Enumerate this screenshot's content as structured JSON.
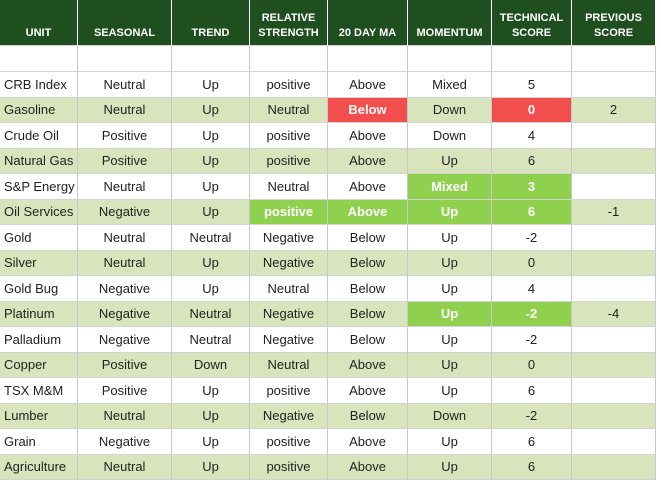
{
  "table": {
    "columns": [
      "UNIT",
      "SEASONAL",
      "TREND",
      "RELATIVE STRENGTH",
      "20 DAY MA",
      "MOMENTUM",
      "TECHNICAL SCORE",
      "PREVIOUS SCORE"
    ],
    "rows": [
      [
        "CRB Index",
        "Neutral",
        "Up",
        "positive",
        "Above",
        "Mixed",
        "5",
        null
      ],
      [
        "Gasoline",
        "Neutral",
        "Up",
        "Neutral",
        {
          "text": "Below",
          "fill": "#f24e4e"
        },
        "Down",
        {
          "text": "0",
          "fill": "#f24e4e"
        },
        "2"
      ],
      [
        "Crude Oil",
        "Positive",
        "Up",
        "positive",
        "Above",
        "Down",
        "4",
        null
      ],
      [
        "Natural Gas",
        "Positive",
        "Up",
        "positive",
        "Above",
        "Up",
        "6",
        null
      ],
      [
        "S&P Energy",
        "Neutral",
        "Up",
        "Neutral",
        "Above",
        {
          "text": "Mixed",
          "fill": "#8fd14f"
        },
        {
          "text": "3",
          "fill": "#8fd14f"
        },
        null
      ],
      [
        "Oil Services",
        "Negative",
        "Up",
        {
          "text": "positive",
          "fill": "#8fd14f"
        },
        {
          "text": "Above",
          "fill": "#8fd14f"
        },
        {
          "text": "Up",
          "fill": "#8fd14f"
        },
        {
          "text": "6",
          "fill": "#8fd14f"
        },
        "-1"
      ],
      [
        "Gold",
        "Neutral",
        "Neutral",
        "Negative",
        "Below",
        "Up",
        "-2",
        null
      ],
      [
        "Silver",
        "Neutral",
        "Up",
        "Negative",
        "Below",
        "Up",
        "0",
        null
      ],
      [
        "Gold Bug",
        "Negative",
        "Up",
        "Neutral",
        "Below",
        "Up",
        "4",
        null
      ],
      [
        "Platinum",
        "Negative",
        "Neutral",
        "Negative",
        "Below",
        {
          "text": "Up",
          "fill": "#8fd14f"
        },
        {
          "text": "-2",
          "fill": "#8fd14f"
        },
        "-4"
      ],
      [
        "Palladium",
        "Negative",
        "Neutral",
        "Negative",
        "Below",
        "Up",
        "-2",
        null
      ],
      [
        "Copper",
        "Positive",
        "Down",
        "Neutral",
        "Above",
        "Up",
        "0",
        null
      ],
      [
        "TSX M&M",
        "Positive",
        "Up",
        "positive",
        "Above",
        "Up",
        "6",
        null
      ],
      [
        "Lumber",
        "Neutral",
        "Up",
        "Negative",
        "Below",
        "Down",
        "-2",
        null
      ],
      [
        "Grain",
        "Negative",
        "Up",
        "positive",
        "Above",
        "Up",
        "6",
        null
      ],
      [
        "Agriculture",
        "Neutral",
        "Up",
        "positive",
        "Above",
        "Up",
        "6",
        null
      ]
    ],
    "header_color": "#1f4e1f",
    "stripe_color": "#d8e4bc"
  }
}
